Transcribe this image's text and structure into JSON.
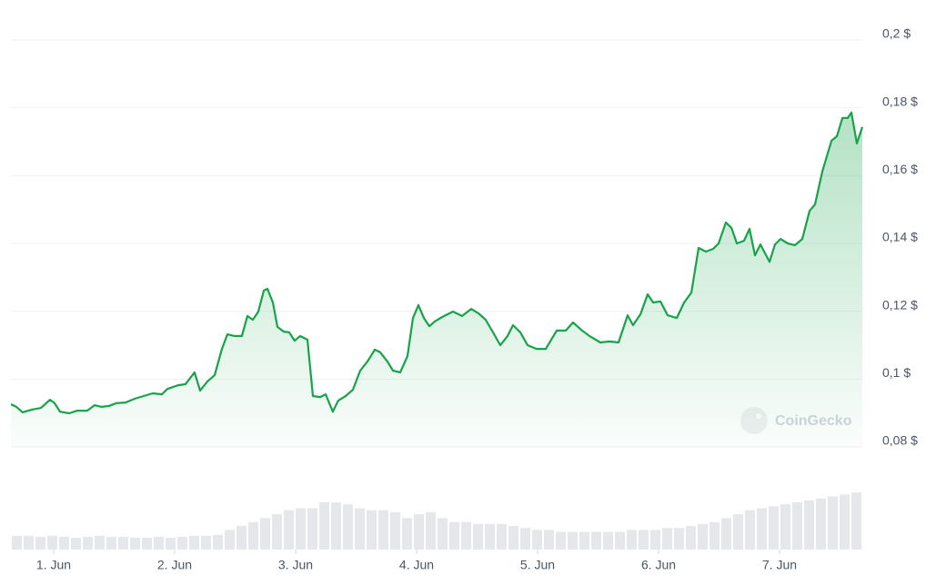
{
  "chart_data": [
    {
      "type": "line",
      "color": "#16a34a",
      "x": [
        0.647,
        0.692,
        0.744,
        0.82,
        0.895,
        0.97,
        1.008,
        1.053,
        1.128,
        1.195,
        1.278,
        1.338,
        1.398,
        1.459,
        1.519,
        1.594,
        1.669,
        1.744,
        1.82,
        1.895,
        1.94,
        2.03,
        2.09,
        2.165,
        2.211,
        2.271,
        2.331,
        2.391,
        2.436,
        2.496,
        2.556,
        2.602,
        2.647,
        2.692,
        2.737,
        2.767,
        2.812,
        2.85,
        2.902,
        2.947,
        2.992,
        3.038,
        3.098,
        3.143,
        3.203,
        3.248,
        3.308,
        3.353,
        3.414,
        3.474,
        3.534,
        3.594,
        3.654,
        3.699,
        3.759,
        3.805,
        3.865,
        3.925,
        3.97,
        4.015,
        4.06,
        4.105,
        4.15,
        4.211,
        4.301,
        4.376,
        4.451,
        4.511,
        4.571,
        4.632,
        4.692,
        4.752,
        4.797,
        4.857,
        4.917,
        4.992,
        5.068,
        5.158,
        5.233,
        5.293,
        5.368,
        5.429,
        5.519,
        5.594,
        5.669,
        5.744,
        5.789,
        5.85,
        5.91,
        5.955,
        6.015,
        6.075,
        6.15,
        6.211,
        6.271,
        6.331,
        6.391,
        6.451,
        6.496,
        6.556,
        6.602,
        6.647,
        6.707,
        6.752,
        6.797,
        6.842,
        6.917,
        6.962,
        7.008,
        7.068,
        7.128,
        7.188,
        7.248,
        7.293,
        7.353,
        7.429,
        7.474,
        7.519,
        7.564,
        7.594,
        7.639,
        7.684
      ],
      "values": [
        0.0926,
        0.0918,
        0.0902,
        0.091,
        0.0915,
        0.0939,
        0.0929,
        0.0904,
        0.0899,
        0.0907,
        0.0907,
        0.0923,
        0.0918,
        0.0921,
        0.0929,
        0.0931,
        0.0942,
        0.095,
        0.0958,
        0.0955,
        0.0971,
        0.0982,
        0.0985,
        0.102,
        0.0966,
        0.0993,
        0.1012,
        0.1089,
        0.1132,
        0.1127,
        0.1127,
        0.1186,
        0.1175,
        0.1199,
        0.1261,
        0.1266,
        0.1226,
        0.1154,
        0.114,
        0.1138,
        0.1113,
        0.1127,
        0.1116,
        0.095,
        0.0947,
        0.0955,
        0.0904,
        0.0937,
        0.095,
        0.0969,
        0.1025,
        0.1052,
        0.1087,
        0.1079,
        0.1052,
        0.1025,
        0.102,
        0.1068,
        0.118,
        0.1218,
        0.118,
        0.1156,
        0.117,
        0.1183,
        0.1199,
        0.1186,
        0.1207,
        0.1194,
        0.1175,
        0.1138,
        0.11,
        0.1127,
        0.1159,
        0.1138,
        0.11,
        0.1089,
        0.1089,
        0.1143,
        0.1143,
        0.1167,
        0.1143,
        0.1127,
        0.1108,
        0.1111,
        0.1108,
        0.1188,
        0.1159,
        0.1191,
        0.125,
        0.1226,
        0.1229,
        0.1188,
        0.118,
        0.1226,
        0.1255,
        0.1387,
        0.1376,
        0.1384,
        0.14,
        0.1462,
        0.1446,
        0.14,
        0.1408,
        0.1443,
        0.1365,
        0.1397,
        0.1346,
        0.1397,
        0.1413,
        0.14,
        0.1395,
        0.1413,
        0.1496,
        0.1515,
        0.1612,
        0.1703,
        0.1716,
        0.177,
        0.177,
        0.1786,
        0.1695,
        0.1743
      ],
      "xlim": [
        0.647,
        7.684
      ],
      "xticks": [
        {
          "value": 1,
          "label": "1. Jun"
        },
        {
          "value": 2,
          "label": "2. Jun"
        },
        {
          "value": 3,
          "label": "3. Jun"
        },
        {
          "value": 4,
          "label": "4. Jun"
        },
        {
          "value": 5,
          "label": "5. Jun"
        },
        {
          "value": 6,
          "label": "6. Jun"
        },
        {
          "value": 7,
          "label": "7. Jun"
        }
      ],
      "ylim": [
        0.08,
        0.2
      ],
      "yticks": [
        {
          "value": 0.08,
          "label": "0,08 $"
        },
        {
          "value": 0.1,
          "label": "0,1 $"
        },
        {
          "value": 0.12,
          "label": "0,12 $"
        },
        {
          "value": 0.14,
          "label": "0,14 $"
        },
        {
          "value": 0.16,
          "label": "0,16 $"
        },
        {
          "value": 0.18,
          "label": "0,18 $"
        },
        {
          "value": 0.2,
          "label": "0,2 $"
        }
      ],
      "grid": true,
      "watermark": "CoinGecko"
    },
    {
      "type": "bar",
      "color": "#e5e7eb",
      "ylim": [
        0,
        60
      ],
      "values": [
        14,
        14,
        13,
        14,
        13,
        12,
        13,
        14,
        13,
        13,
        12,
        12,
        13,
        12,
        13,
        14,
        14,
        15,
        20,
        24,
        28,
        32,
        36,
        40,
        42,
        42,
        48,
        48,
        46,
        42,
        40,
        40,
        38,
        32,
        36,
        38,
        32,
        28,
        28,
        26,
        26,
        26,
        24,
        22,
        20,
        20,
        18,
        18,
        18,
        18,
        18,
        18,
        20,
        20,
        20,
        22,
        22,
        24,
        26,
        28,
        32,
        36,
        40,
        42,
        44,
        46,
        48,
        50,
        52,
        54,
        56,
        58
      ]
    }
  ]
}
